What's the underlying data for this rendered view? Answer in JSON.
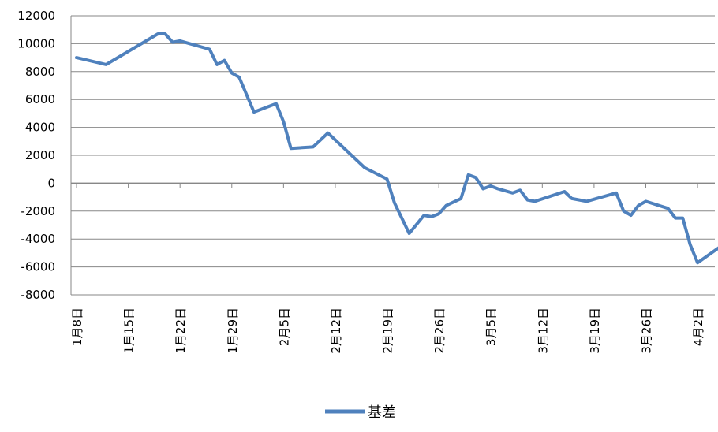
{
  "chart_data": {
    "type": "line",
    "title": "",
    "xlabel": "",
    "ylabel": "",
    "ylim": [
      -8000,
      12000
    ],
    "yticks": [
      "12000",
      "10000",
      "8000",
      "6000",
      "4000",
      "2000",
      "0",
      "-2000",
      "-4000",
      "-6000",
      "-8000"
    ],
    "xtick_labels": [
      "1月8日",
      "1月15日",
      "1月22日",
      "1月29日",
      "2月5日",
      "2月12日",
      "2月19日",
      "2月26日",
      "3月5日",
      "3月12日",
      "3月19日",
      "3月26日",
      "4月2日"
    ],
    "grid": "horizontal",
    "legend_position": "bottom",
    "colors": {
      "series": "#4f81bd",
      "grid": "#878787",
      "axis": "#878787"
    },
    "series": [
      {
        "name": "基差",
        "x": [
          "1月8日",
          "1月12日",
          "1月19日",
          "1月20日",
          "1月21日",
          "1月22日",
          "1月26日",
          "1月27日",
          "1月28日",
          "1月29日",
          "1月30日",
          "2月1日",
          "2月4日",
          "2月5日",
          "2月6日",
          "2月9日",
          "2月11日",
          "2月16日",
          "2月19日",
          "2月20日",
          "2月22日",
          "2月24日",
          "2月25日",
          "2月26日",
          "2月27日",
          "3月1日",
          "3月2日",
          "3月3日",
          "3月4日",
          "3月5日",
          "3月6日",
          "3月8日",
          "3月9日",
          "3月10日",
          "3月11日",
          "3月15日",
          "3月16日",
          "3月17日",
          "3月18日",
          "3月22日",
          "3月23日",
          "3月24日",
          "3月25日",
          "3月26日",
          "3月29日",
          "3月30日",
          "3月31日",
          "4月1日",
          "4月2日",
          "4月6日"
        ],
        "values": [
          9000,
          8500,
          10700,
          10700,
          10100,
          10200,
          9600,
          8500,
          8800,
          7900,
          7600,
          5100,
          5700,
          4400,
          2500,
          2600,
          3600,
          1100,
          300,
          -1400,
          -3600,
          -2300,
          -2400,
          -2200,
          -1600,
          -1100,
          600,
          400,
          -400,
          -200,
          -400,
          -700,
          -500,
          -1200,
          -1300,
          -600,
          -1100,
          -1200,
          -1300,
          -700,
          -2000,
          -2300,
          -1600,
          -1300,
          -1800,
          -2500,
          -2500,
          -4400,
          -5700,
          -4200
        ]
      }
    ]
  }
}
